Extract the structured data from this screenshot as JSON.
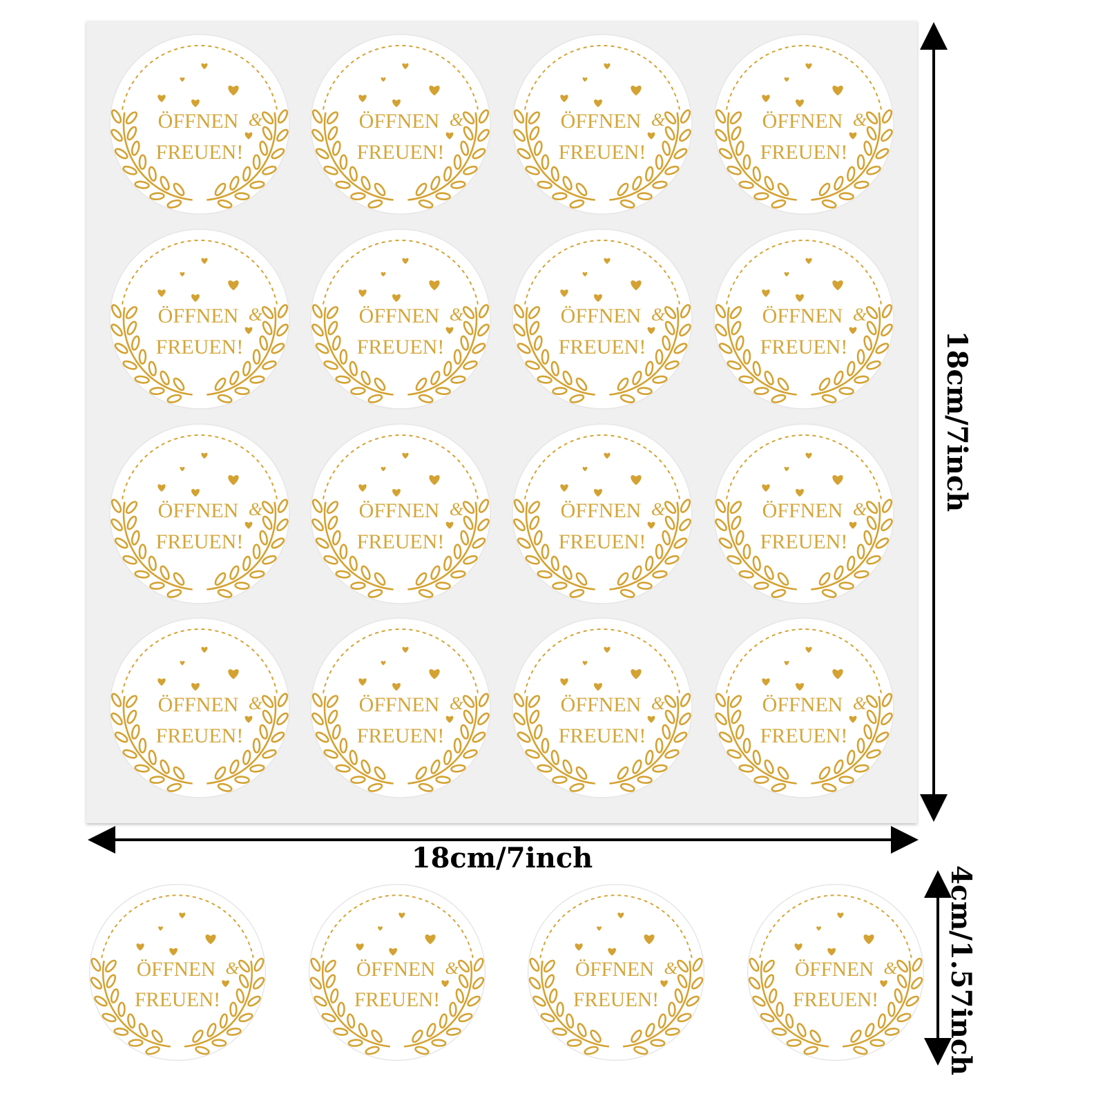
{
  "sticker": {
    "line1": "ÖFFNEN",
    "ampersand": "&",
    "line2": "FREUEN!",
    "gold_color": "#d4a232",
    "sheet_rows": 4,
    "sheet_cols": 4,
    "loose_count": 4
  },
  "dimensions": {
    "sheet_height": "18cm/7inch",
    "sheet_width": "18cm/7inch",
    "sticker_diameter": "4cm/1.57inch"
  },
  "colors": {
    "sheet_background": "#f0f0f0",
    "sticker_background": "#ffffff",
    "arrow": "#000000"
  }
}
